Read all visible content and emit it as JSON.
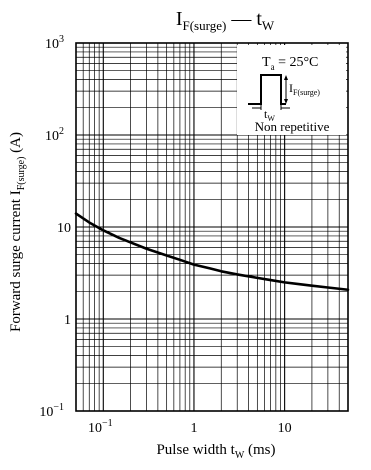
{
  "chart_data": {
    "type": "line",
    "title": {
      "main": "I",
      "main_sub": "F(surge)",
      "dash": " — ",
      "var": "t",
      "var_sub": "W"
    },
    "xlabel": {
      "text": "Pulse width  t",
      "sub": "W",
      "unit": "  (ms)"
    },
    "ylabel": {
      "text": "Forward surge current  I",
      "sub": "F(surge)",
      "unit": "  (A)"
    },
    "x_scale": "log",
    "y_scale": "log",
    "xlim": [
      0.05,
      50
    ],
    "ylim": [
      0.1,
      1000
    ],
    "x_ticks": [
      {
        "value": 0.1,
        "base": "10",
        "exp": "−1"
      },
      {
        "value": 1,
        "base": "1",
        "exp": ""
      },
      {
        "value": 10,
        "base": "10",
        "exp": ""
      }
    ],
    "y_ticks": [
      {
        "value": 0.1,
        "base": "10",
        "exp": "−1"
      },
      {
        "value": 1,
        "base": "1",
        "exp": ""
      },
      {
        "value": 10,
        "base": "10",
        "exp": ""
      },
      {
        "value": 100,
        "base": "10",
        "exp": "2"
      },
      {
        "value": 1000,
        "base": "10",
        "exp": "3"
      }
    ],
    "grid": true,
    "series": [
      {
        "x": [
          0.05,
          0.07,
          0.1,
          0.15,
          0.2,
          0.3,
          0.5,
          0.7,
          1,
          1.5,
          2,
          3,
          5,
          7,
          10,
          15,
          20,
          30,
          50
        ],
        "y": [
          14,
          11.2,
          9.2,
          7.6,
          6.8,
          5.8,
          4.9,
          4.4,
          3.9,
          3.55,
          3.3,
          3.05,
          2.8,
          2.65,
          2.5,
          2.38,
          2.3,
          2.2,
          2.08
        ]
      }
    ],
    "annotations": {
      "temperature": {
        "t": "T",
        "t_sub": "a",
        "rest": " = 25°C"
      },
      "pulse_height_label": {
        "text": "I",
        "sub": "F(surge)"
      },
      "pulse_width_label": {
        "text": "t",
        "sub": "W"
      },
      "note": "Non repetitive"
    }
  }
}
